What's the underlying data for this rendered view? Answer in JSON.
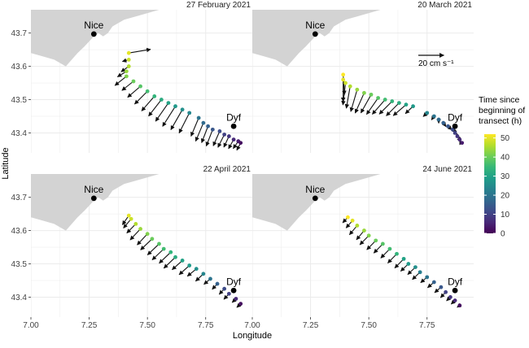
{
  "colors": {
    "land": "#d3d3d3",
    "grid": "#ebebeb",
    "arrow": "#111111",
    "city": "#000000",
    "viridis": [
      "#440154",
      "#482878",
      "#3e4a89",
      "#31688e",
      "#26828e",
      "#1f9e89",
      "#35b779",
      "#6ece58",
      "#b5de2b",
      "#fde725"
    ]
  },
  "chart_data": {
    "type": "map-vector-facets",
    "xlabel": "Longitude",
    "ylabel": "Latitude",
    "xlim": [
      7.0,
      7.95
    ],
    "ylim": [
      43.34,
      43.77
    ],
    "x_ticks": [
      7.0,
      7.25,
      7.5,
      7.75
    ],
    "x_tick_labels": [
      "7.00",
      "7.25",
      "7.50",
      "7.75"
    ],
    "y_ticks": [
      43.4,
      43.5,
      43.6,
      43.7
    ],
    "y_tick_labels": [
      "43.4",
      "43.5",
      "43.6",
      "43.7"
    ],
    "grid": true,
    "legend": {
      "title": [
        "Time since",
        "beginning of",
        "transect (h)"
      ],
      "colormap": "viridis",
      "range": [
        0,
        52
      ],
      "ticks": [
        0,
        10,
        20,
        30,
        40,
        50
      ],
      "placement": "right"
    },
    "scale_arrow": {
      "label": "20 cm s⁻¹",
      "value_cm_s": 20,
      "panel": 1
    },
    "cities": [
      {
        "name": "Nice",
        "lon": 7.27,
        "lat": 43.697
      },
      {
        "name": "Dyf",
        "lon": 7.87,
        "lat": 43.42
      }
    ],
    "coastline": [
      [
        7.0,
        43.77
      ],
      [
        7.0,
        43.64
      ],
      [
        7.05,
        43.63
      ],
      [
        7.1,
        43.62
      ],
      [
        7.15,
        43.6
      ],
      [
        7.2,
        43.64
      ],
      [
        7.23,
        43.66
      ],
      [
        7.27,
        43.69
      ],
      [
        7.29,
        43.7
      ],
      [
        7.31,
        43.69
      ],
      [
        7.33,
        43.7
      ],
      [
        7.35,
        43.72
      ],
      [
        7.4,
        43.74
      ],
      [
        7.45,
        43.75
      ],
      [
        7.5,
        43.76
      ],
      [
        7.55,
        43.77
      ]
    ],
    "panels": [
      {
        "title": "27 February 2021",
        "points": [
          [
            7.42,
            43.64,
            50,
            0.17,
            0.02
          ],
          [
            7.42,
            43.62,
            48,
            -0.05,
            -0.01
          ],
          [
            7.42,
            43.6,
            46,
            -0.06,
            -0.03
          ],
          [
            7.41,
            43.585,
            44,
            -0.07,
            -0.03
          ],
          [
            7.41,
            43.57,
            42,
            -0.09,
            -0.05
          ],
          [
            7.44,
            43.555,
            40,
            -0.09,
            -0.05
          ],
          [
            7.47,
            43.54,
            38,
            -0.1,
            -0.06
          ],
          [
            7.5,
            43.525,
            36,
            -0.1,
            -0.07
          ],
          [
            7.53,
            43.51,
            34,
            -0.1,
            -0.08
          ],
          [
            7.56,
            43.5,
            32,
            -0.1,
            -0.09
          ],
          [
            7.59,
            43.49,
            30,
            -0.1,
            -0.1
          ],
          [
            7.62,
            43.48,
            28,
            -0.1,
            -0.11
          ],
          [
            7.65,
            43.47,
            26,
            -0.09,
            -0.11
          ],
          [
            7.68,
            43.46,
            24,
            -0.08,
            -0.11
          ],
          [
            7.72,
            43.445,
            20,
            -0.06,
            -0.1
          ],
          [
            7.74,
            43.43,
            18,
            -0.06,
            -0.1
          ],
          [
            7.76,
            43.42,
            16,
            -0.05,
            -0.09
          ],
          [
            7.78,
            43.41,
            14,
            -0.05,
            -0.09
          ],
          [
            7.81,
            43.405,
            12,
            -0.05,
            -0.08
          ],
          [
            7.83,
            43.395,
            10,
            -0.05,
            -0.07
          ],
          [
            7.85,
            43.39,
            8,
            -0.04,
            -0.06
          ],
          [
            7.87,
            43.38,
            6,
            -0.04,
            -0.05
          ],
          [
            7.89,
            43.375,
            4,
            -0.04,
            -0.04
          ],
          [
            7.9,
            43.37,
            2,
            -0.03,
            -0.04
          ]
        ]
      },
      {
        "title": "20 March 2021",
        "points": [
          [
            7.39,
            43.575,
            52,
            0.01,
            -0.11
          ],
          [
            7.39,
            43.56,
            50,
            0.0,
            -0.12
          ],
          [
            7.4,
            43.55,
            48,
            -0.02,
            -0.12
          ],
          [
            7.42,
            43.54,
            46,
            -0.03,
            -0.12
          ],
          [
            7.45,
            43.53,
            44,
            -0.05,
            -0.12
          ],
          [
            7.48,
            43.52,
            42,
            -0.07,
            -0.11
          ],
          [
            7.51,
            43.515,
            40,
            -0.08,
            -0.1
          ],
          [
            7.54,
            43.505,
            38,
            -0.09,
            -0.09
          ],
          [
            7.57,
            43.5,
            36,
            -0.1,
            -0.08
          ],
          [
            7.6,
            43.495,
            34,
            -0.1,
            -0.07
          ],
          [
            7.63,
            43.49,
            32,
            -0.1,
            -0.07
          ],
          [
            7.66,
            43.485,
            30,
            -0.1,
            -0.06
          ],
          [
            7.69,
            43.48,
            28,
            -0.06,
            -0.04
          ],
          [
            7.75,
            43.46,
            24,
            -0.03,
            -0.02
          ],
          [
            7.78,
            43.45,
            20,
            -0.02,
            -0.02
          ],
          [
            7.8,
            43.44,
            18,
            0.0,
            -0.02
          ],
          [
            7.82,
            43.43,
            16,
            0.02,
            -0.02
          ],
          [
            7.84,
            43.42,
            14,
            0.03,
            -0.02
          ],
          [
            7.86,
            43.41,
            12,
            0.03,
            -0.01
          ],
          [
            7.87,
            43.4,
            10,
            0.02,
            -0.01
          ],
          [
            7.88,
            43.39,
            8,
            0.02,
            -0.01
          ],
          [
            7.89,
            43.38,
            6,
            0.01,
            -0.01
          ],
          [
            7.9,
            43.37,
            4,
            0.01,
            0.0
          ]
        ]
      },
      {
        "title": "22 April 2021",
        "points": [
          [
            7.42,
            43.645,
            50,
            -0.05,
            -0.05
          ],
          [
            7.43,
            43.635,
            48,
            -0.06,
            -0.05
          ],
          [
            7.45,
            43.62,
            46,
            -0.07,
            -0.05
          ],
          [
            7.47,
            43.605,
            44,
            -0.08,
            -0.06
          ],
          [
            7.5,
            43.59,
            42,
            -0.08,
            -0.06
          ],
          [
            7.52,
            43.575,
            40,
            -0.09,
            -0.06
          ],
          [
            7.55,
            43.56,
            38,
            -0.09,
            -0.06
          ],
          [
            7.57,
            43.545,
            36,
            -0.09,
            -0.06
          ],
          [
            7.6,
            43.535,
            34,
            -0.09,
            -0.06
          ],
          [
            7.62,
            43.52,
            32,
            -0.09,
            -0.06
          ],
          [
            7.65,
            43.51,
            30,
            -0.08,
            -0.05
          ],
          [
            7.68,
            43.495,
            28,
            -0.08,
            -0.05
          ],
          [
            7.71,
            43.485,
            26,
            -0.07,
            -0.04
          ],
          [
            7.74,
            43.47,
            24,
            -0.06,
            -0.04
          ],
          [
            7.77,
            43.455,
            20,
            -0.05,
            -0.03
          ],
          [
            7.8,
            43.44,
            16,
            -0.04,
            -0.03
          ],
          [
            7.83,
            43.425,
            12,
            -0.04,
            -0.03
          ],
          [
            7.85,
            43.41,
            10,
            -0.04,
            -0.03
          ],
          [
            7.88,
            43.395,
            6,
            -0.03,
            -0.02
          ],
          [
            7.9,
            43.38,
            2,
            -0.03,
            -0.02
          ]
        ]
      },
      {
        "title": "24 June 2021",
        "points": [
          [
            7.41,
            43.64,
            52,
            -0.04,
            -0.03
          ],
          [
            7.43,
            43.63,
            50,
            -0.05,
            -0.04
          ],
          [
            7.45,
            43.615,
            46,
            -0.06,
            -0.05
          ],
          [
            7.48,
            43.6,
            44,
            -0.06,
            -0.05
          ],
          [
            7.5,
            43.585,
            42,
            -0.07,
            -0.05
          ],
          [
            7.53,
            43.57,
            40,
            -0.07,
            -0.05
          ],
          [
            7.56,
            43.56,
            38,
            -0.07,
            -0.05
          ],
          [
            7.59,
            43.545,
            36,
            -0.07,
            -0.05
          ],
          [
            7.62,
            43.53,
            34,
            -0.07,
            -0.05
          ],
          [
            7.65,
            43.515,
            30,
            -0.07,
            -0.05
          ],
          [
            7.67,
            43.5,
            28,
            -0.06,
            -0.04
          ],
          [
            7.7,
            43.49,
            26,
            -0.06,
            -0.04
          ],
          [
            7.72,
            43.475,
            22,
            -0.06,
            -0.04
          ],
          [
            7.75,
            43.46,
            20,
            -0.05,
            -0.03
          ],
          [
            7.78,
            43.445,
            16,
            -0.05,
            -0.03
          ],
          [
            7.81,
            43.43,
            14,
            -0.05,
            -0.03
          ],
          [
            7.83,
            43.415,
            10,
            -0.04,
            -0.03
          ],
          [
            7.85,
            43.4,
            8,
            -0.03,
            -0.02
          ],
          [
            7.87,
            43.39,
            6,
            -0.03,
            -0.02
          ],
          [
            7.89,
            43.375,
            2,
            -0.02,
            -0.01
          ]
        ]
      }
    ]
  }
}
